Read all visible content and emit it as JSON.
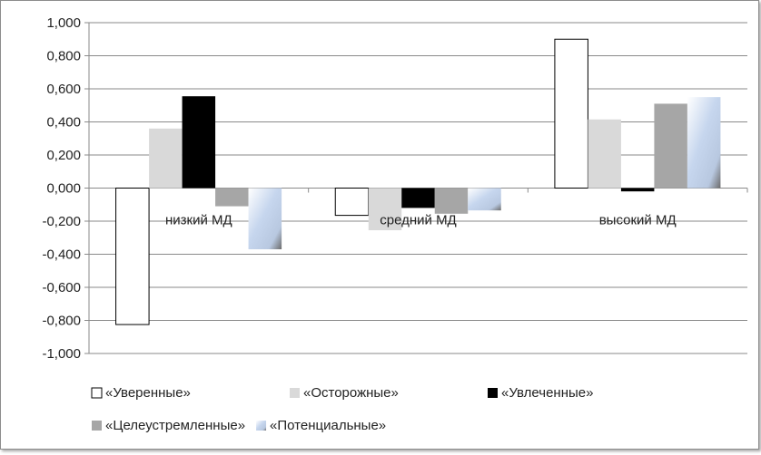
{
  "chart_data": {
    "type": "bar",
    "categories": [
      "низкий МД",
      "средний МД",
      "высокий МД"
    ],
    "series": [
      {
        "name": "«Уверенные»",
        "values": [
          -0.825,
          -0.165,
          0.9
        ],
        "color": "#ffffff",
        "stroke": "#000000"
      },
      {
        "name": "«Осторожные»",
        "values": [
          0.36,
          -0.255,
          0.415
        ],
        "color": "#d9d9d9",
        "stroke": "none"
      },
      {
        "name": "«Увлеченные»",
        "values": [
          0.555,
          -0.12,
          -0.02
        ],
        "color": "#000000",
        "stroke": "none"
      },
      {
        "name": "«Целеустремленные»",
        "values": [
          -0.11,
          -0.155,
          0.51
        ],
        "color": "#a6a6a6",
        "stroke": "none"
      },
      {
        "name": "«Потенциальные»",
        "values": [
          -0.37,
          -0.135,
          0.55
        ],
        "color": "#c6d6ee",
        "stroke": "none",
        "gradient": true
      }
    ],
    "ylim": [
      -1.0,
      1.0
    ],
    "yticks": [
      "-1,000",
      "-0,800",
      "-0,600",
      "-0,400",
      "-0,200",
      "0,000",
      "0,200",
      "0,400",
      "0,600",
      "0,800",
      "1,000"
    ],
    "grid": true,
    "legend_position": "bottom",
    "xlabel": "",
    "ylabel": "",
    "title": ""
  }
}
